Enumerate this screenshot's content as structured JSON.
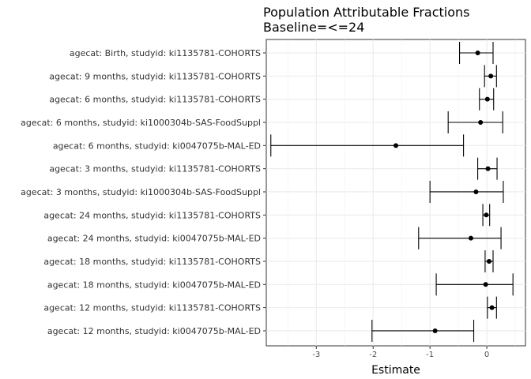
{
  "chart_data": {
    "type": "forest",
    "title": "Population Attributable Fractions",
    "subtitle": "Baseline=<=24",
    "xlabel": "Estimate",
    "ylabel": "",
    "xlim": [
      -3.88,
      0.68
    ],
    "xticks": [
      -3,
      -2,
      -1,
      0
    ],
    "grid": true,
    "categories": [
      "agecat: Birth, studyid: ki1135781-COHORTS",
      "agecat: 9 months, studyid: ki1135781-COHORTS",
      "agecat: 6 months, studyid: ki1135781-COHORTS",
      "agecat: 6 months, studyid: ki1000304b-SAS-FoodSuppl",
      "agecat: 6 months, studyid: ki0047075b-MAL-ED",
      "agecat: 3 months, studyid: ki1135781-COHORTS",
      "agecat: 3 months, studyid: ki1000304b-SAS-FoodSuppl",
      "agecat: 24 months, studyid: ki1135781-COHORTS",
      "agecat: 24 months, studyid: ki0047075b-MAL-ED",
      "agecat: 18 months, studyid: ki1135781-COHORTS",
      "agecat: 18 months, studyid: ki0047075b-MAL-ED",
      "agecat: 12 months, studyid: ki1135781-COHORTS",
      "agecat: 12 months, studyid: ki0047075b-MAL-ED"
    ],
    "estimates": [
      -0.16,
      0.07,
      0.01,
      -0.11,
      -1.6,
      0.02,
      -0.19,
      -0.01,
      -0.28,
      0.04,
      -0.02,
      0.09,
      -0.91
    ],
    "lower": [
      -0.48,
      -0.04,
      -0.13,
      -0.68,
      -3.8,
      -0.16,
      -1.0,
      -0.07,
      -1.2,
      -0.03,
      -0.89,
      0.01,
      -2.02
    ],
    "upper": [
      0.11,
      0.17,
      0.12,
      0.28,
      -0.41,
      0.18,
      0.29,
      0.05,
      0.25,
      0.11,
      0.46,
      0.17,
      -0.23
    ]
  }
}
